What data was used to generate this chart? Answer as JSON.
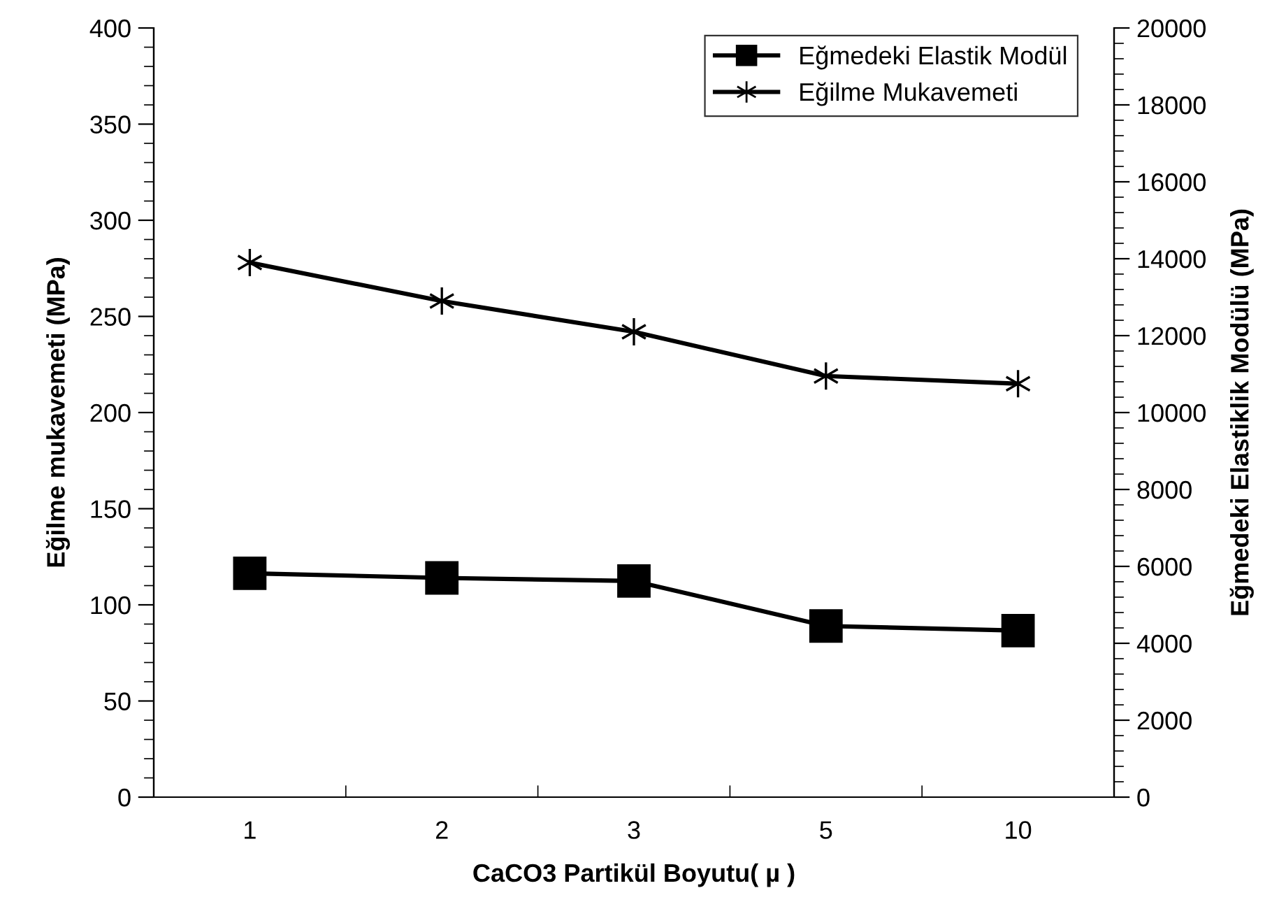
{
  "chart_data": {
    "type": "line",
    "xlabel": "CaCO3 Partikül Boyutu( µ )",
    "ylabel": "Eğilme mukavemeti (MPa)",
    "y2label": "Eğmedeki Elastiklik Modülü (MPa)",
    "categories": [
      "1",
      "2",
      "3",
      "5",
      "10"
    ],
    "series": [
      {
        "name": "Eğmedeki Elastik Modül",
        "color": "#000000",
        "marker": "square",
        "axis": "y2",
        "values": [
          5820,
          5700,
          5620,
          4450,
          4330
        ]
      },
      {
        "name": "Eğilme Mukavemeti",
        "color": "#000000",
        "marker": "cross",
        "values": [
          278,
          258,
          242,
          219,
          215
        ]
      }
    ],
    "ylim": [
      0,
      400
    ],
    "yticks": [
      0,
      50,
      100,
      150,
      200,
      250,
      300,
      350,
      400
    ],
    "y2lim": [
      0,
      20000
    ],
    "y2ticks": [
      0,
      2000,
      4000,
      6000,
      8000,
      10000,
      12000,
      14000,
      16000,
      18000,
      20000
    ],
    "legend": "top right",
    "grid": false,
    "line_style": "solid"
  }
}
